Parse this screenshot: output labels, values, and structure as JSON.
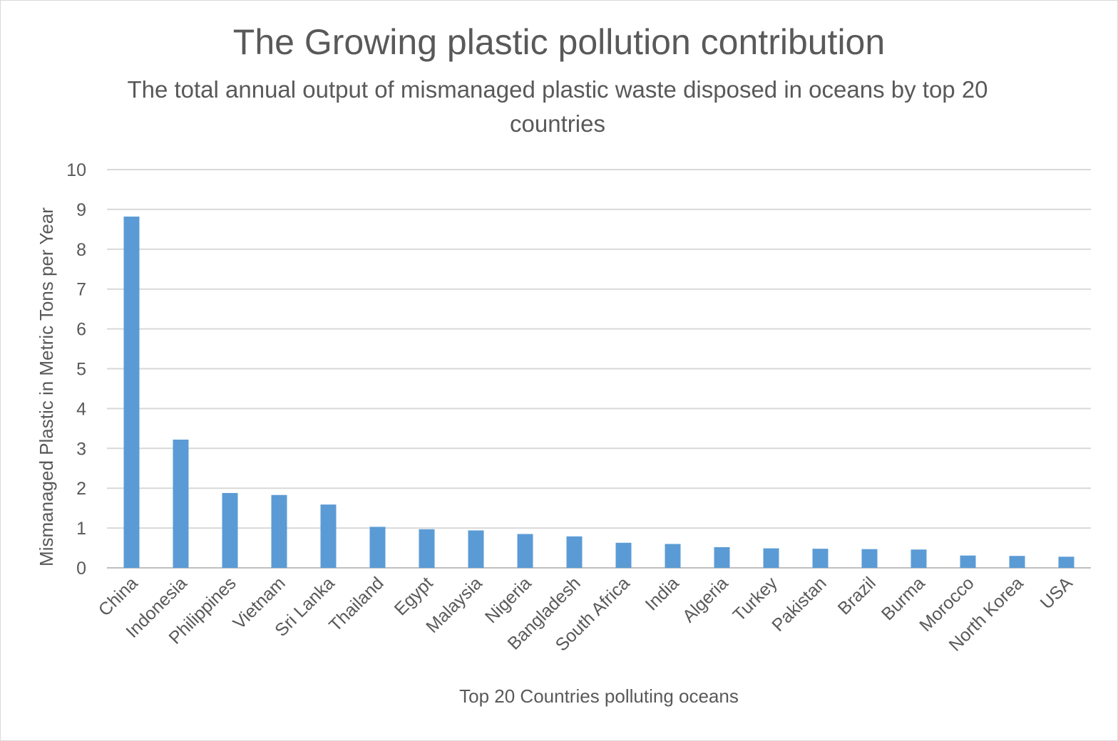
{
  "chart_data": {
    "type": "bar",
    "title": "The Growing plastic pollution contribution",
    "subtitle": "The total annual output of mismanaged plastic waste disposed in oceans by top 20 countries",
    "xlabel": "Top 20 Countries polluting oceans",
    "ylabel": "Mismanaged Plastic in Metric Tons per Year",
    "ylim": [
      0,
      10
    ],
    "yticks": [
      "0",
      "1",
      "2",
      "3",
      "4",
      "5",
      "6",
      "7",
      "8",
      "9",
      "10"
    ],
    "grid": true,
    "legend": "none",
    "bar_color": "#5b9bd5",
    "categories": [
      "China",
      "Indonesia",
      "Philippines",
      "Vietnam",
      "Sri Lanka",
      "Thailand",
      "Egypt",
      "Malaysia",
      "Nigeria",
      "Bangladesh",
      "South Africa",
      "India",
      "Algeria",
      "Turkey",
      "Pakistan",
      "Brazil",
      "Burma",
      "Morocco",
      "North Korea",
      "USA"
    ],
    "values": [
      8.82,
      3.22,
      1.88,
      1.83,
      1.59,
      1.03,
      0.97,
      0.94,
      0.85,
      0.79,
      0.63,
      0.6,
      0.52,
      0.49,
      0.48,
      0.47,
      0.46,
      0.31,
      0.3,
      0.28
    ]
  }
}
